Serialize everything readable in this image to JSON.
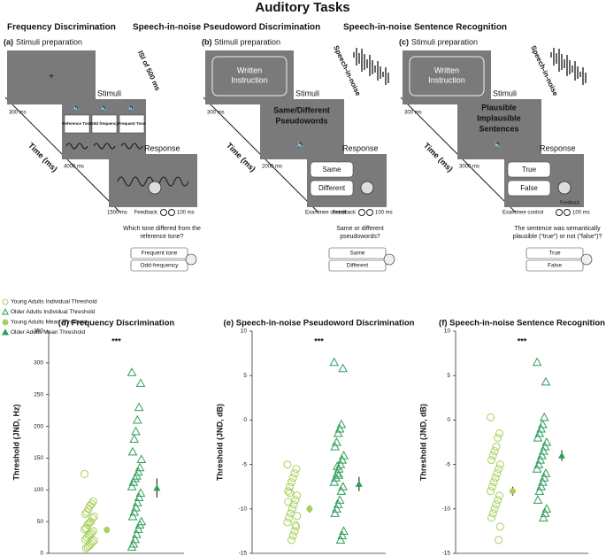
{
  "title": "Auditory Tasks",
  "diagrams": [
    {
      "header": "Frequency Discrimination",
      "letter": "(a)",
      "prep_label": "Stimuli preparation",
      "prep_text": [],
      "prep_duration": "300 ms",
      "side_note": "ISI of 500 ms",
      "stimuli_label": "Stimuli",
      "stimuli_items": [
        "Reference Tone",
        "Odd frequency",
        "Frequent Tone"
      ],
      "stimuli_duration": "4000 ms",
      "response_label": "Response",
      "response_items": [],
      "response_duration": "1500 ms",
      "feedback_label": "Feedback",
      "feedback_duration": "100 ms",
      "time_label": "Time (ms)",
      "question": [
        "Which tone differed from the",
        "reference tone?"
      ],
      "options": [
        "Frequent tone",
        "Odd-frequency"
      ]
    },
    {
      "header": "Speech-in-noise Pseudoword Discrimination",
      "letter": "(b)",
      "prep_label": "Stimuli preparation",
      "prep_text": [
        "Written",
        "Instruction"
      ],
      "prep_duration": "300 ms",
      "side_note": "Speech-in-noise",
      "stimuli_label": "Stimuli",
      "stimuli_items": [
        "Same/Different",
        "Pseudowords"
      ],
      "stimuli_duration": "2000 ms",
      "response_label": "Response",
      "response_items": [
        "Same",
        "Different"
      ],
      "response_duration": "Examinee control",
      "feedback_label": "Feedback",
      "feedback_duration": "100 ms",
      "time_label": "Time (ms)",
      "question": [
        "Same or different",
        "pseudowords?"
      ],
      "options": [
        "Same",
        "Different"
      ]
    },
    {
      "header": "Speech-in-noise Sentence Recognition",
      "letter": "(c)",
      "prep_label": "Stimuli preparation",
      "prep_text": [
        "Written",
        "Instruction"
      ],
      "prep_duration": "300 ms",
      "side_note": "Speech-in-noise",
      "stimuli_label": "Stimuli",
      "stimuli_items": [
        "Plausible",
        "Implausible",
        "Sentences"
      ],
      "stimuli_duration": "3000 ms",
      "response_label": "Response",
      "response_items": [
        "True",
        "False"
      ],
      "response_duration": "Examinee control",
      "feedback_label": "Feedback",
      "feedback_duration": "100 ms",
      "time_label": "Time (ms)",
      "question": [
        "The sentence was semantically",
        "plausible (“true”) or not (“false”)?"
      ],
      "options": [
        "True",
        "False"
      ]
    }
  ],
  "chart_data": [
    {
      "type": "scatter",
      "title": "(d) Frequency Discrimination",
      "ylabel": "Threshold (JND, Hz)",
      "annotation": "***",
      "ylim": [
        0,
        350
      ],
      "yticks": [
        0,
        50,
        100,
        150,
        200,
        250,
        300,
        350
      ],
      "series": [
        {
          "name": "Young Adults Individual Threshold",
          "color": "#a8d05c",
          "values": [
            125,
            82,
            78,
            75,
            70,
            65,
            62,
            58,
            55,
            50,
            48,
            45,
            40,
            38,
            35,
            32,
            30,
            28,
            25,
            22,
            20,
            18,
            15,
            12,
            10,
            8
          ]
        },
        {
          "name": "Older Adults Individual Threshold",
          "color": "#2e9e5b",
          "values": [
            285,
            268,
            230,
            210,
            192,
            180,
            160,
            148,
            135,
            128,
            122,
            118,
            112,
            105,
            95,
            88,
            80,
            72,
            65,
            58,
            50,
            45,
            38,
            30,
            22,
            15,
            10
          ]
        },
        {
          "name": "Young Adults Mean Threshold",
          "color": "#a8d05c",
          "values": [
            37
          ],
          "errors": [
            5
          ]
        },
        {
          "name": "Older Adults Mean Threshold",
          "color": "#2e9e5b",
          "values": [
            103
          ],
          "errors": [
            15
          ]
        }
      ]
    },
    {
      "type": "scatter",
      "title": "(e) Speech-in-noise Pseudoword Discrimination",
      "ylabel": "Threshold (JND, dB)",
      "annotation": "***",
      "ylim": [
        -15,
        10
      ],
      "yticks": [
        -15,
        -10,
        -5,
        0,
        5,
        10
      ],
      "series": [
        {
          "color": "#a8d05c",
          "values": [
            -5,
            -5.5,
            -6,
            -6.5,
            -7,
            -7.5,
            -8,
            -8.5,
            -9,
            -9.5,
            -10,
            -10.5,
            -11,
            -11.5,
            -12,
            -12.5,
            -13,
            -13.5,
            -8.2,
            -9.2,
            -10.8,
            -11.8
          ]
        },
        {
          "color": "#2e9e5b",
          "values": [
            6.5,
            5.8,
            -0.5,
            -1,
            -1.5,
            -2.5,
            -3,
            -4,
            -4.5,
            -5,
            -5.5,
            -6,
            -6.5,
            -7,
            -7.5,
            -8,
            -9,
            -9.5,
            -10,
            -10.5,
            -12.5,
            -13,
            -13.5,
            -6.2,
            -5.2
          ]
        },
        {
          "color": "#a8d05c",
          "values": [
            -10
          ],
          "errors": [
            0.4
          ]
        },
        {
          "color": "#2e9e5b",
          "values": [
            -7.2
          ],
          "errors": [
            0.8
          ]
        }
      ]
    },
    {
      "type": "scatter",
      "title": "(f) Speech-in-noise Sentence Recognition",
      "ylabel": "Threshold (JND, dB)",
      "annotation": "***",
      "ylim": [
        -15,
        10
      ],
      "yticks": [
        -15,
        -10,
        -5,
        0,
        5,
        10
      ],
      "series": [
        {
          "color": "#a8d05c",
          "values": [
            0.3,
            -1.5,
            -2,
            -3,
            -3.5,
            -4,
            -4.5,
            -5,
            -5.5,
            -6,
            -6.5,
            -7,
            -7.5,
            -8,
            -8.5,
            -9,
            -9.5,
            -10,
            -10.5,
            -11,
            -12,
            -13.5
          ]
        },
        {
          "color": "#2e9e5b",
          "values": [
            6.5,
            4.3,
            0.3,
            -0.5,
            -1,
            -1.5,
            -2,
            -2.5,
            -3,
            -3.5,
            -4,
            -4.5,
            -5,
            -5.5,
            -6,
            -6.5,
            -7,
            -7.5,
            -8,
            -9,
            -10,
            -10.5,
            -11
          ]
        },
        {
          "color": "#a8d05c",
          "values": [
            -8
          ],
          "errors": [
            0.5
          ]
        },
        {
          "color": "#2e9e5b",
          "values": [
            -4
          ],
          "errors": [
            0.6
          ]
        }
      ]
    }
  ]
}
